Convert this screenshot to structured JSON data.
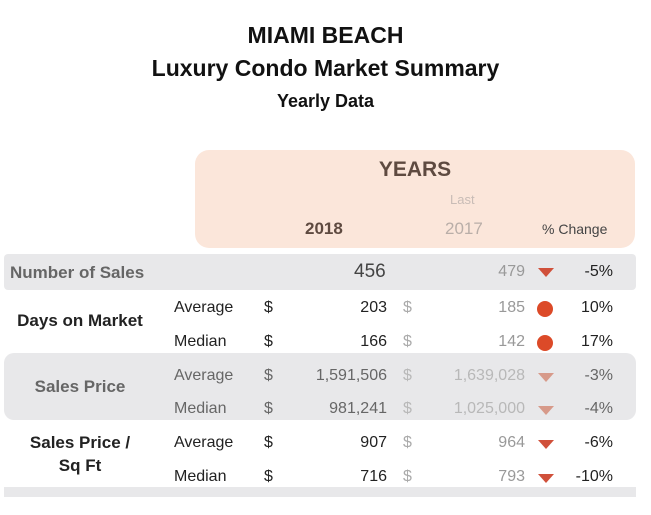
{
  "title": "MIAMI BEACH",
  "subtitle": "Luxury Condo Market Summary",
  "subtitle2": "Yearly Data",
  "colors": {
    "header_bg": "#fbe6da",
    "band": "#e8e8ea",
    "up": "#dc4a28",
    "down": "#d0503a"
  },
  "chart_data": {
    "type": "table",
    "header": {
      "group": "YEARS",
      "last": "Last",
      "current": "2018",
      "previous": "2017",
      "change": "% Change"
    },
    "rows": [
      {
        "group": "Number of Sales",
        "stat": "",
        "cur": "456",
        "prev": "479",
        "trend": "down",
        "change": "-5%"
      },
      {
        "group": "Days on Market",
        "stat": "Average",
        "cur_unit": "$",
        "cur": "203",
        "prev_unit": "$",
        "prev": "185",
        "trend": "up-circle",
        "change": "10%"
      },
      {
        "group": "Days on Market",
        "stat": "Median",
        "cur_unit": "$",
        "cur": "166",
        "prev_unit": "$",
        "prev": "142",
        "trend": "up-circle",
        "change": "17%"
      },
      {
        "group": "Sales Price",
        "stat": "Average",
        "cur_unit": "$",
        "cur": "1,591,506",
        "prev_unit": "$",
        "prev": "1,639,028",
        "trend": "down",
        "change": "-3%"
      },
      {
        "group": "Sales Price",
        "stat": "Median",
        "cur_unit": "$",
        "cur": "981,241",
        "prev_unit": "$",
        "prev": "1,025,000",
        "trend": "down",
        "change": "-4%"
      },
      {
        "group": "Sales Price / Sq Ft",
        "stat": "Average",
        "cur_unit": "$",
        "cur": "907",
        "prev_unit": "$",
        "prev": "964",
        "trend": "down",
        "change": "-6%"
      },
      {
        "group": "Sales Price / Sq Ft",
        "stat": "Median",
        "cur_unit": "$",
        "cur": "716",
        "prev_unit": "$",
        "prev": "793",
        "trend": "down",
        "change": "-10%"
      }
    ],
    "groups": {
      "g1": "Sales Price /",
      "g2": "Sq Ft"
    }
  }
}
